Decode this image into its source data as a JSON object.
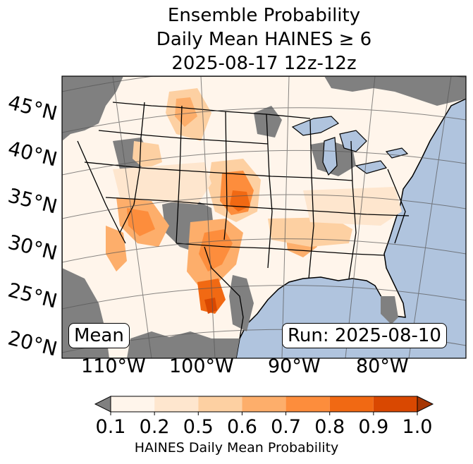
{
  "title": {
    "line1": "Ensemble Probability",
    "line2": "Daily Mean HAINES ≥ 6",
    "line3": "2025-08-17 12z-12z"
  },
  "map": {
    "ocean_color": "#b0c4de",
    "land_below_threshold_color": "#808080",
    "lat_labels": [
      "45°N",
      "40°N",
      "35°N",
      "30°N",
      "25°N",
      "20°N"
    ],
    "lon_labels": [
      "110°W",
      "100°W",
      "90°W",
      "80°W"
    ]
  },
  "annotations": {
    "mean_label": "Mean",
    "run_label": "Run: 2025-08-10"
  },
  "colorbar": {
    "ticks": [
      "0.1",
      "0.2",
      "0.5",
      "0.6",
      "0.7",
      "0.8",
      "0.9",
      "1.0"
    ],
    "colors": [
      "#fff5eb",
      "#fee6ce",
      "#fdd0a2",
      "#fdae6b",
      "#fd8d3c",
      "#f16913",
      "#d94801"
    ],
    "under_color": "#808080",
    "over_color": "#a63603",
    "label": "HAINES Daily Mean Probability"
  }
}
